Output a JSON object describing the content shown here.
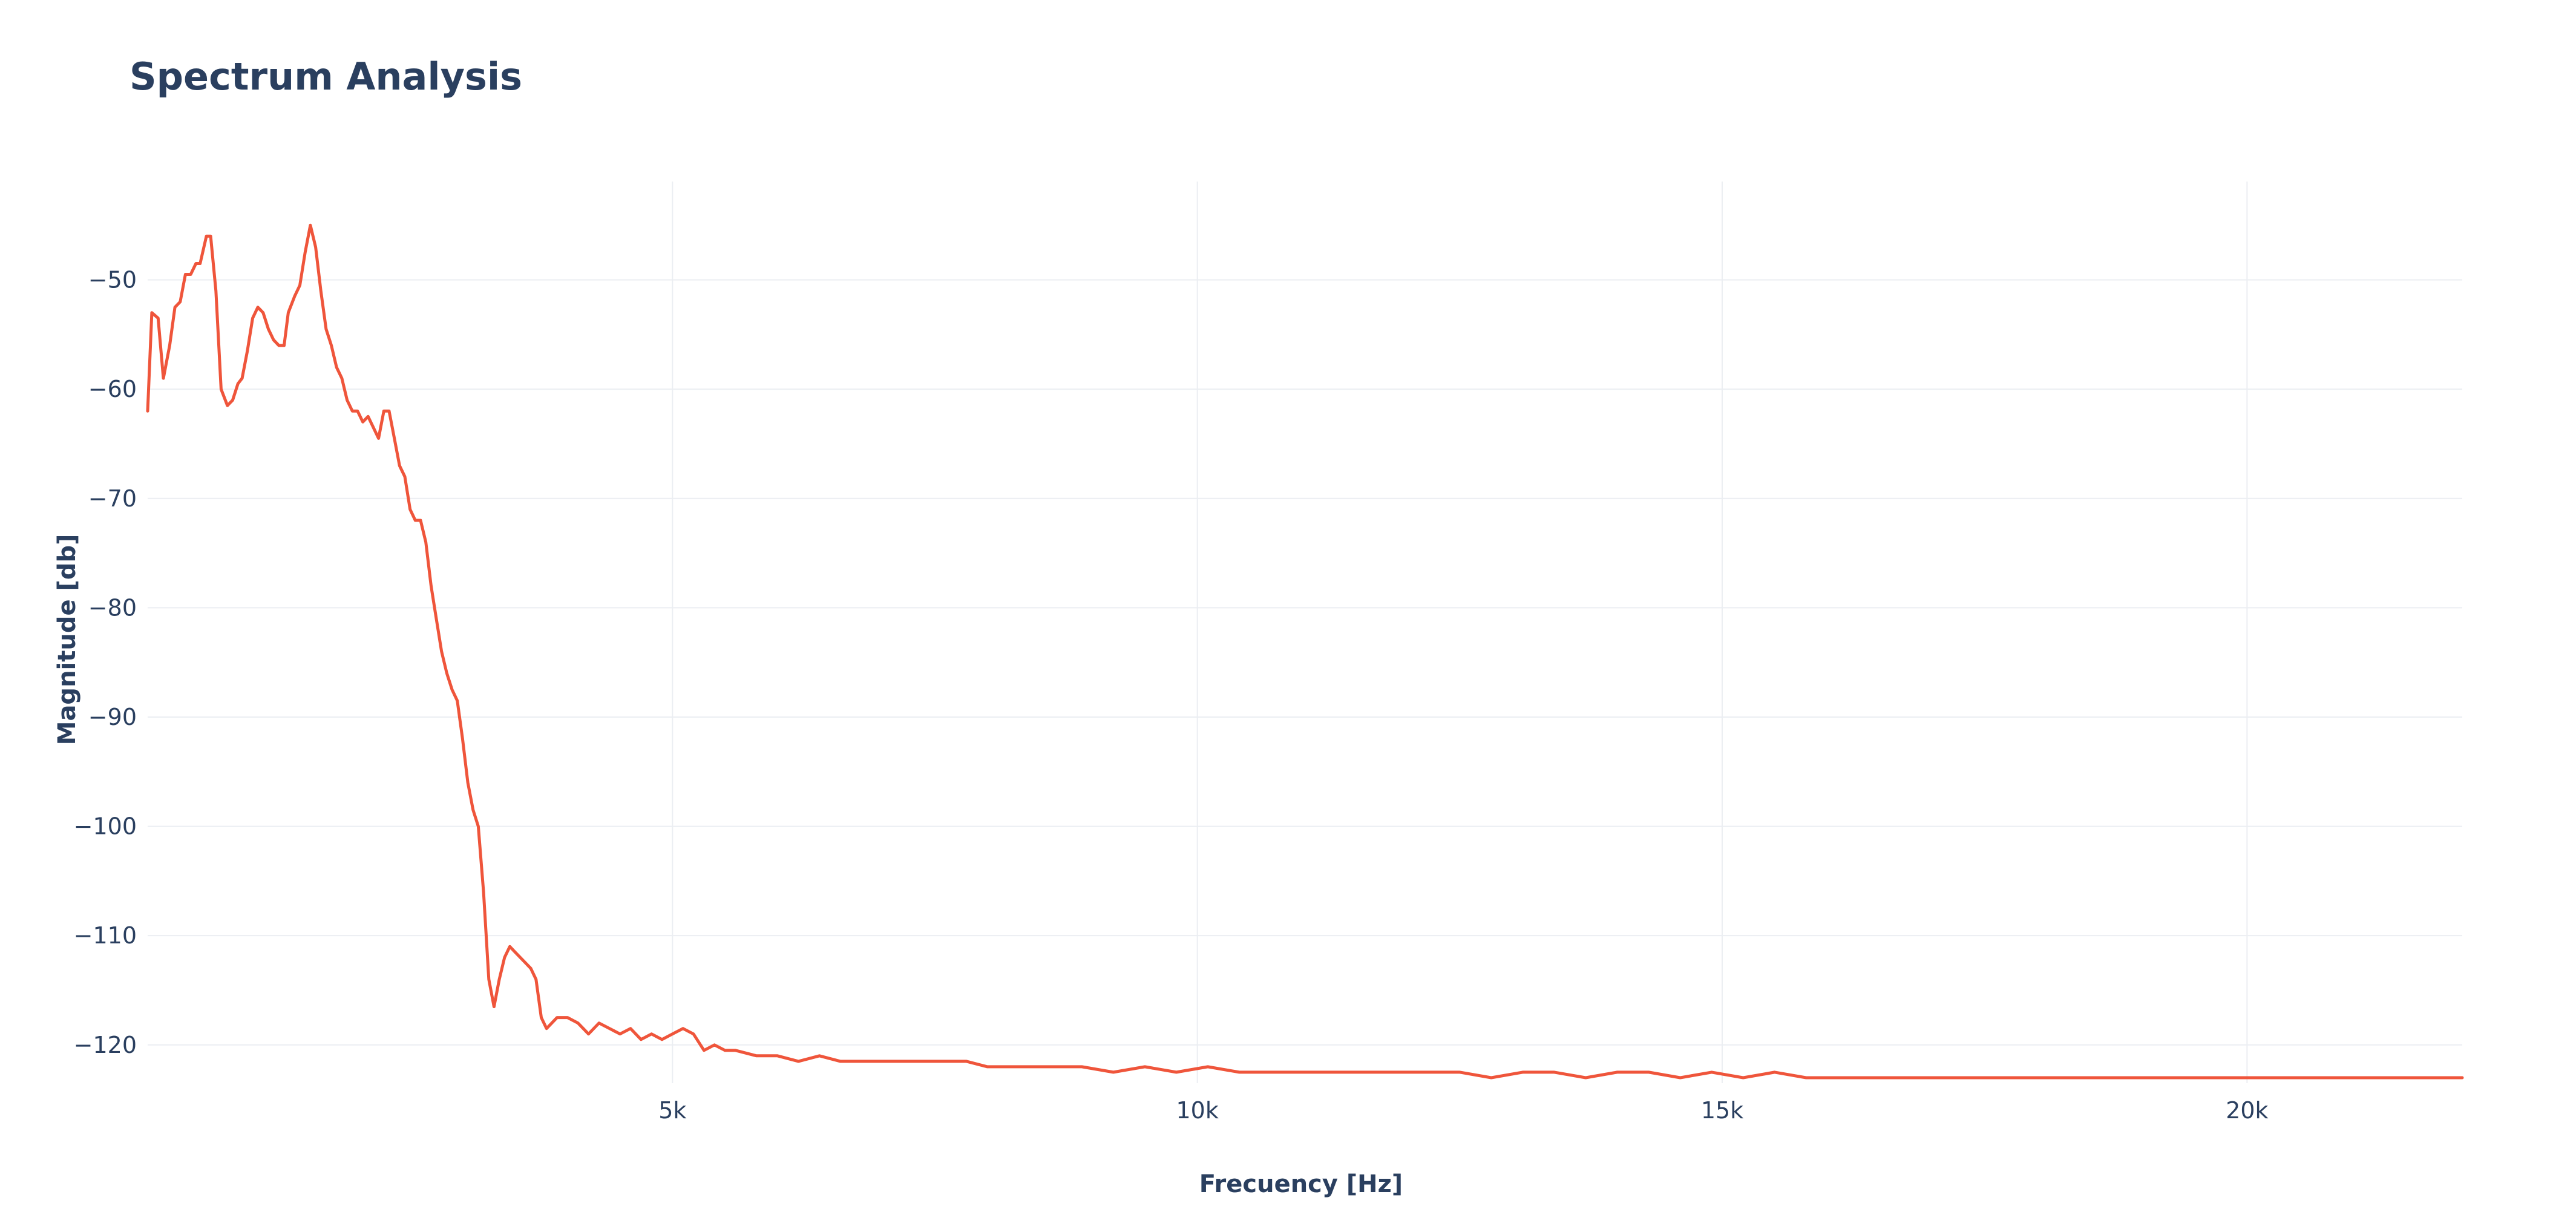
{
  "chart_data": {
    "type": "line",
    "title": "Spectrum Analysis",
    "xlabel": "Frecuency [Hz]",
    "ylabel": "Magnitude [db]",
    "xlim": [
      0,
      22050
    ],
    "ylim": [
      -123.5,
      -41
    ],
    "grid": true,
    "x_ticks": [
      5000,
      10000,
      15000,
      20000
    ],
    "x_tick_labels": [
      "5k",
      "10k",
      "15k",
      "20k"
    ],
    "y_ticks": [
      -120,
      -110,
      -100,
      -90,
      -80,
      -70,
      -60,
      -50
    ],
    "y_tick_labels": [
      "−120",
      "−110",
      "−100",
      "−90",
      "−80",
      "−70",
      "−60",
      "−50"
    ],
    "series": [
      {
        "color": "#ef553b",
        "x": [
          0,
          40,
          100,
          150,
          210,
          260,
          310,
          360,
          410,
          460,
          500,
          560,
          600,
          650,
          700,
          760,
          810,
          860,
          900,
          950,
          1000,
          1050,
          1100,
          1150,
          1200,
          1250,
          1300,
          1340,
          1400,
          1450,
          1500,
          1550,
          1600,
          1650,
          1700,
          1750,
          1800,
          1850,
          1900,
          1950,
          2000,
          2050,
          2100,
          2150,
          2200,
          2250,
          2300,
          2350,
          2400,
          2450,
          2500,
          2550,
          2600,
          2650,
          2700,
          2750,
          2800,
          2850,
          2900,
          2950,
          3000,
          3050,
          3100,
          3150,
          3200,
          3250,
          3300,
          3350,
          3400,
          3450,
          3500,
          3550,
          3600,
          3650,
          3700,
          3750,
          3800,
          3900,
          4000,
          4100,
          4200,
          4300,
          4400,
          4500,
          4600,
          4700,
          4800,
          4900,
          5000,
          5100,
          5200,
          5300,
          5400,
          5500,
          5600,
          5800,
          6000,
          6200,
          6400,
          6600,
          6800,
          7000,
          7200,
          7400,
          7600,
          7800,
          8000,
          8300,
          8600,
          8900,
          9200,
          9500,
          9800,
          10100,
          10400,
          10700,
          11000,
          11300,
          11600,
          11900,
          12200,
          12500,
          12800,
          13100,
          13400,
          13700,
          14000,
          14300,
          14600,
          14900,
          15200,
          15500,
          15800,
          16100,
          16400,
          16700,
          17000,
          17300,
          17600,
          17900,
          18200,
          18500,
          18800,
          19100,
          19400,
          19700,
          20000,
          20300,
          20600,
          20900,
          21200,
          21500,
          21800,
          22050
        ],
        "y": [
          -62,
          -53,
          -53.5,
          -59,
          -56,
          -52.5,
          -52,
          -49.5,
          -49.5,
          -48.5,
          -48.5,
          -46,
          -46,
          -51,
          -60,
          -61.5,
          -61,
          -59.5,
          -59,
          -56.5,
          -53.5,
          -52.5,
          -53,
          -54.5,
          -55.5,
          -56,
          -56,
          -53,
          -51.5,
          -50.5,
          -47.5,
          -45,
          -47,
          -51,
          -54.5,
          -56,
          -58,
          -59,
          -61,
          -62,
          -62,
          -63,
          -62.5,
          -63.5,
          -64.5,
          -62,
          -62,
          -64.5,
          -67,
          -68,
          -71,
          -72,
          -72,
          -74,
          -78,
          -81,
          -84,
          -86,
          -87.5,
          -88.5,
          -92,
          -96,
          -98.5,
          -100,
          -106,
          -114,
          -116.5,
          -114,
          -112,
          -111,
          -111.5,
          -112,
          -112.5,
          -113,
          -114,
          -117.5,
          -118.5,
          -117.5,
          -117.5,
          -118,
          -119,
          -118,
          -118.5,
          -119,
          -118.5,
          -119.5,
          -119,
          -119.5,
          -119,
          -118.5,
          -119,
          -120.5,
          -120,
          -120.5,
          -120.5,
          -121,
          -121,
          -121.5,
          -121,
          -121.5,
          -121.5,
          -121.5,
          -121.5,
          -121.5,
          -121.5,
          -121.5,
          -122,
          -122,
          -122,
          -122,
          -122.5,
          -122,
          -122.5,
          -122,
          -122.5,
          -122.5,
          -122.5,
          -122.5,
          -122.5,
          -122.5,
          -122.5,
          -122.5,
          -123,
          -122.5,
          -122.5,
          -123,
          -122.5,
          -122.5,
          -123,
          -122.5,
          -123,
          -122.5,
          -123,
          -123,
          -123,
          -123,
          -123,
          -123,
          -123,
          -123,
          -123,
          -123,
          -123,
          -123,
          -123,
          -123,
          -123,
          -123,
          -123,
          -123,
          -123,
          -123,
          -123,
          -123
        ]
      }
    ]
  }
}
